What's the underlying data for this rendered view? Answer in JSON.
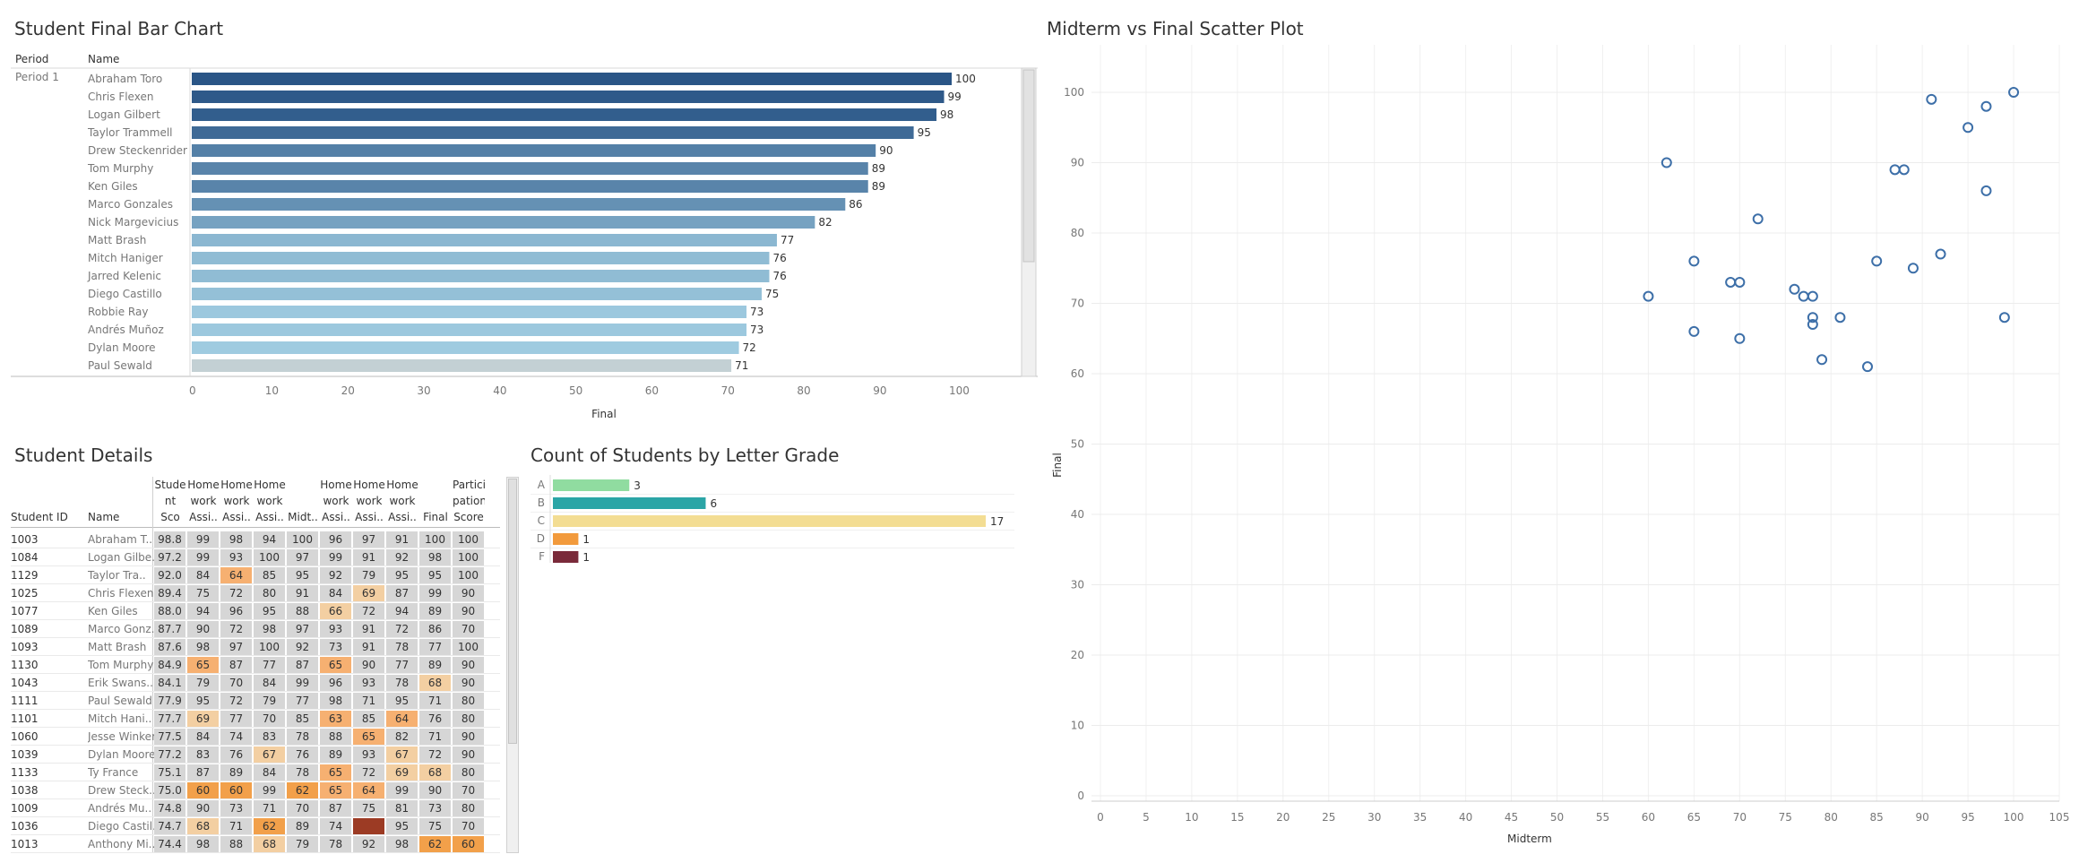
{
  "bar_chart": {
    "title": "Student Final Bar Chart",
    "period_header": "Period",
    "name_header": "Name",
    "period_label": "Period 1",
    "xlabel": "Final"
  },
  "scatter": {
    "title": "Midterm vs Final Scatter Plot",
    "xlabel": "Midterm",
    "ylabel": "Final"
  },
  "details": {
    "title": "Student Details",
    "headers": [
      "Student ID",
      "Name",
      "Stude\nnt Sco\nre",
      "Home\nwork\nAssi..",
      "Home\nwork\nAssi..",
      "Home\nwork\nAssi..",
      "Midt..",
      "Home\nwork\nAssi..",
      "Home\nwork\nAssi..",
      "Home\nwork\nAssi..",
      "Final",
      "Partici\npation\nScore"
    ],
    "rows": [
      [
        "1003",
        "Abraham T..",
        "98.8",
        "99",
        "98",
        "94",
        "100",
        "96",
        "97",
        "91",
        "100",
        "100"
      ],
      [
        "1084",
        "Logan Gilbe..",
        "97.2",
        "99",
        "93",
        "100",
        "97",
        "99",
        "91",
        "92",
        "98",
        "100"
      ],
      [
        "1129",
        "Taylor Tra..",
        "92.0",
        "84",
        "64",
        "85",
        "95",
        "92",
        "79",
        "95",
        "95",
        "100"
      ],
      [
        "1025",
        "Chris Flexen",
        "89.4",
        "75",
        "72",
        "80",
        "91",
        "84",
        "69",
        "87",
        "99",
        "90"
      ],
      [
        "1077",
        "Ken Giles",
        "88.0",
        "94",
        "96",
        "95",
        "88",
        "66",
        "72",
        "94",
        "89",
        "90"
      ],
      [
        "1089",
        "Marco Gonz..",
        "87.7",
        "90",
        "72",
        "98",
        "97",
        "93",
        "91",
        "72",
        "86",
        "70"
      ],
      [
        "1093",
        "Matt Brash",
        "87.6",
        "98",
        "97",
        "100",
        "92",
        "73",
        "91",
        "78",
        "77",
        "100"
      ],
      [
        "1130",
        "Tom Murphy",
        "84.9",
        "65",
        "87",
        "77",
        "87",
        "65",
        "90",
        "77",
        "89",
        "90"
      ],
      [
        "1043",
        "Erik Swans..",
        "84.1",
        "79",
        "70",
        "84",
        "99",
        "96",
        "93",
        "78",
        "68",
        "90"
      ],
      [
        "1111",
        "Paul Sewald",
        "77.9",
        "95",
        "72",
        "79",
        "77",
        "98",
        "71",
        "95",
        "71",
        "80"
      ],
      [
        "1101",
        "Mitch Hani..",
        "77.7",
        "69",
        "77",
        "70",
        "85",
        "63",
        "85",
        "64",
        "76",
        "80"
      ],
      [
        "1060",
        "Jesse Winker",
        "77.5",
        "84",
        "74",
        "83",
        "78",
        "88",
        "65",
        "82",
        "71",
        "90"
      ],
      [
        "1039",
        "Dylan Moore",
        "77.2",
        "83",
        "76",
        "67",
        "76",
        "89",
        "93",
        "67",
        "72",
        "90"
      ],
      [
        "1133",
        "Ty France",
        "75.1",
        "87",
        "89",
        "84",
        "78",
        "65",
        "72",
        "69",
        "68",
        "80"
      ],
      [
        "1038",
        "Drew Steck..",
        "75.0",
        "60",
        "60",
        "99",
        "62",
        "65",
        "64",
        "99",
        "90",
        "70"
      ],
      [
        "1009",
        "Andrés Mu..",
        "74.8",
        "90",
        "73",
        "71",
        "70",
        "87",
        "75",
        "81",
        "73",
        "80"
      ],
      [
        "1036",
        "Diego Castil..",
        "74.7",
        "68",
        "71",
        "62",
        "89",
        "74",
        "",
        "95",
        "75",
        "70"
      ],
      [
        "1013",
        "Anthony Mi..",
        "74.4",
        "98",
        "88",
        "68",
        "79",
        "78",
        "92",
        "98",
        "62",
        "60"
      ]
    ]
  },
  "grade_chart": {
    "title": "Count of Students by Letter Grade"
  },
  "colors": {
    "bar_dark": "#2e5b8c",
    "bar_light": "#c3d0d4",
    "point": "#3d6fa8"
  },
  "chart_data": [
    {
      "type": "bar",
      "orientation": "horizontal",
      "title": "Student Final Bar Chart",
      "xlabel": "Final",
      "xlim": [
        0,
        100
      ],
      "xticks": [
        0,
        10,
        20,
        30,
        40,
        50,
        60,
        70,
        80,
        90,
        100
      ],
      "categories": [
        "Abraham Toro",
        "Chris Flexen",
        "Logan Gilbert",
        "Taylor Trammell",
        "Drew Steckenrider",
        "Tom Murphy",
        "Ken Giles",
        "Marco Gonzales",
        "Nick Margevicius",
        "Matt Brash",
        "Mitch Haniger",
        "Jarred Kelenic",
        "Diego Castillo",
        "Robbie Ray",
        "Andrés Muñoz",
        "Dylan Moore",
        "Paul Sewald"
      ],
      "values": [
        100,
        99,
        98,
        95,
        90,
        89,
        89,
        86,
        82,
        77,
        76,
        76,
        75,
        73,
        73,
        72,
        71
      ]
    },
    {
      "type": "scatter",
      "title": "Midterm vs Final Scatter Plot",
      "xlabel": "Midterm",
      "ylabel": "Final",
      "xlim": [
        0,
        105
      ],
      "ylim": [
        0,
        105
      ],
      "xticks": [
        0,
        5,
        10,
        15,
        20,
        25,
        30,
        35,
        40,
        45,
        50,
        55,
        60,
        65,
        70,
        75,
        80,
        85,
        90,
        95,
        100,
        105
      ],
      "yticks": [
        0,
        10,
        20,
        30,
        40,
        50,
        60,
        70,
        80,
        90,
        100
      ],
      "points": [
        {
          "x": 60,
          "y": 71
        },
        {
          "x": 62,
          "y": 90
        },
        {
          "x": 65,
          "y": 76
        },
        {
          "x": 65,
          "y": 66
        },
        {
          "x": 69,
          "y": 73
        },
        {
          "x": 70,
          "y": 73
        },
        {
          "x": 70,
          "y": 65
        },
        {
          "x": 72,
          "y": 82
        },
        {
          "x": 76,
          "y": 72
        },
        {
          "x": 77,
          "y": 71
        },
        {
          "x": 78,
          "y": 71
        },
        {
          "x": 78,
          "y": 68
        },
        {
          "x": 78,
          "y": 67
        },
        {
          "x": 79,
          "y": 62
        },
        {
          "x": 81,
          "y": 68
        },
        {
          "x": 84,
          "y": 61
        },
        {
          "x": 85,
          "y": 76
        },
        {
          "x": 87,
          "y": 89
        },
        {
          "x": 88,
          "y": 89
        },
        {
          "x": 89,
          "y": 75
        },
        {
          "x": 91,
          "y": 99
        },
        {
          "x": 92,
          "y": 77
        },
        {
          "x": 95,
          "y": 95
        },
        {
          "x": 97,
          "y": 98
        },
        {
          "x": 97,
          "y": 86
        },
        {
          "x": 99,
          "y": 68
        },
        {
          "x": 100,
          "y": 100
        }
      ]
    },
    {
      "type": "bar",
      "orientation": "horizontal",
      "title": "Count of Students by Letter Grade",
      "categories": [
        "A",
        "B",
        "C",
        "D",
        "F"
      ],
      "values": [
        3,
        6,
        17,
        1,
        1
      ],
      "colors": [
        "#90dca0",
        "#2ba5a6",
        "#f3dd93",
        "#f29a3c",
        "#7a2a3a"
      ],
      "xlim": [
        0,
        17
      ]
    }
  ]
}
